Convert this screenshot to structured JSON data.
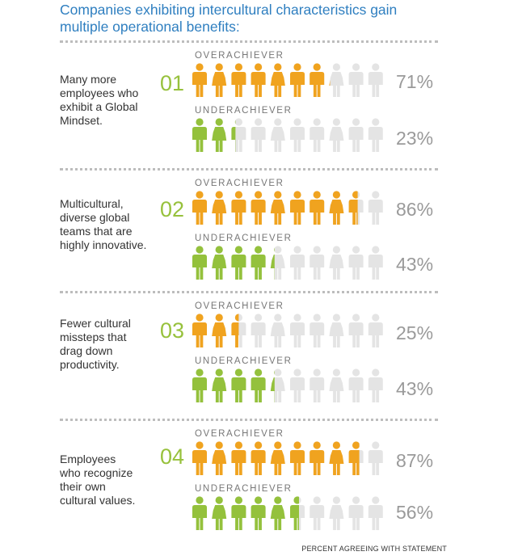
{
  "title_line1": "Companies exhibiting intercultural characteristics gain",
  "title_line2": "multiple operational benefits:",
  "footer": "PERCENT AGREEING WITH STATEMENT",
  "colors": {
    "over": "#f0a31f",
    "under": "#94c13c",
    "empty": "#e4e4e4",
    "number": "#97c13c",
    "title": "#2f7fc0"
  },
  "chart_data": {
    "type": "pictograph",
    "icons_per_group": 10,
    "unit": "%",
    "series_names": [
      "OVERACHIEVER",
      "UNDERACHIEVER"
    ],
    "rows": [
      {
        "num": "01",
        "lines": [
          "Many more",
          "employees who",
          "exhibit a Global",
          "Mindset."
        ],
        "groups": [
          {
            "label": "OVERACHIEVER",
            "value": 71,
            "pct": "71%"
          },
          {
            "label": "UNDERACHIEVER",
            "value": 23,
            "pct": "23%"
          }
        ]
      },
      {
        "num": "02",
        "lines": [
          "Multicultural,",
          "diverse global",
          "teams that are",
          "highly innovative."
        ],
        "groups": [
          {
            "label": "OVERACHIEVER",
            "value": 86,
            "pct": "86%"
          },
          {
            "label": "UNDERACHIEVER",
            "value": 43,
            "pct": "43%"
          }
        ]
      },
      {
        "num": "03",
        "lines": [
          "Fewer cultural",
          "missteps that",
          "drag down",
          "productivity."
        ],
        "groups": [
          {
            "label": "OVERACHIEVER",
            "value": 25,
            "pct": "25%"
          },
          {
            "label": "UNDERACHIEVER",
            "value": 43,
            "pct": "43%"
          }
        ]
      },
      {
        "num": "04",
        "lines": [
          "Employees",
          "who recognize",
          "their own",
          "cultural values."
        ],
        "groups": [
          {
            "label": "OVERACHIEVER",
            "value": 87,
            "pct": "87%"
          },
          {
            "label": "UNDERACHIEVER",
            "value": 56,
            "pct": "56%"
          }
        ]
      }
    ]
  }
}
